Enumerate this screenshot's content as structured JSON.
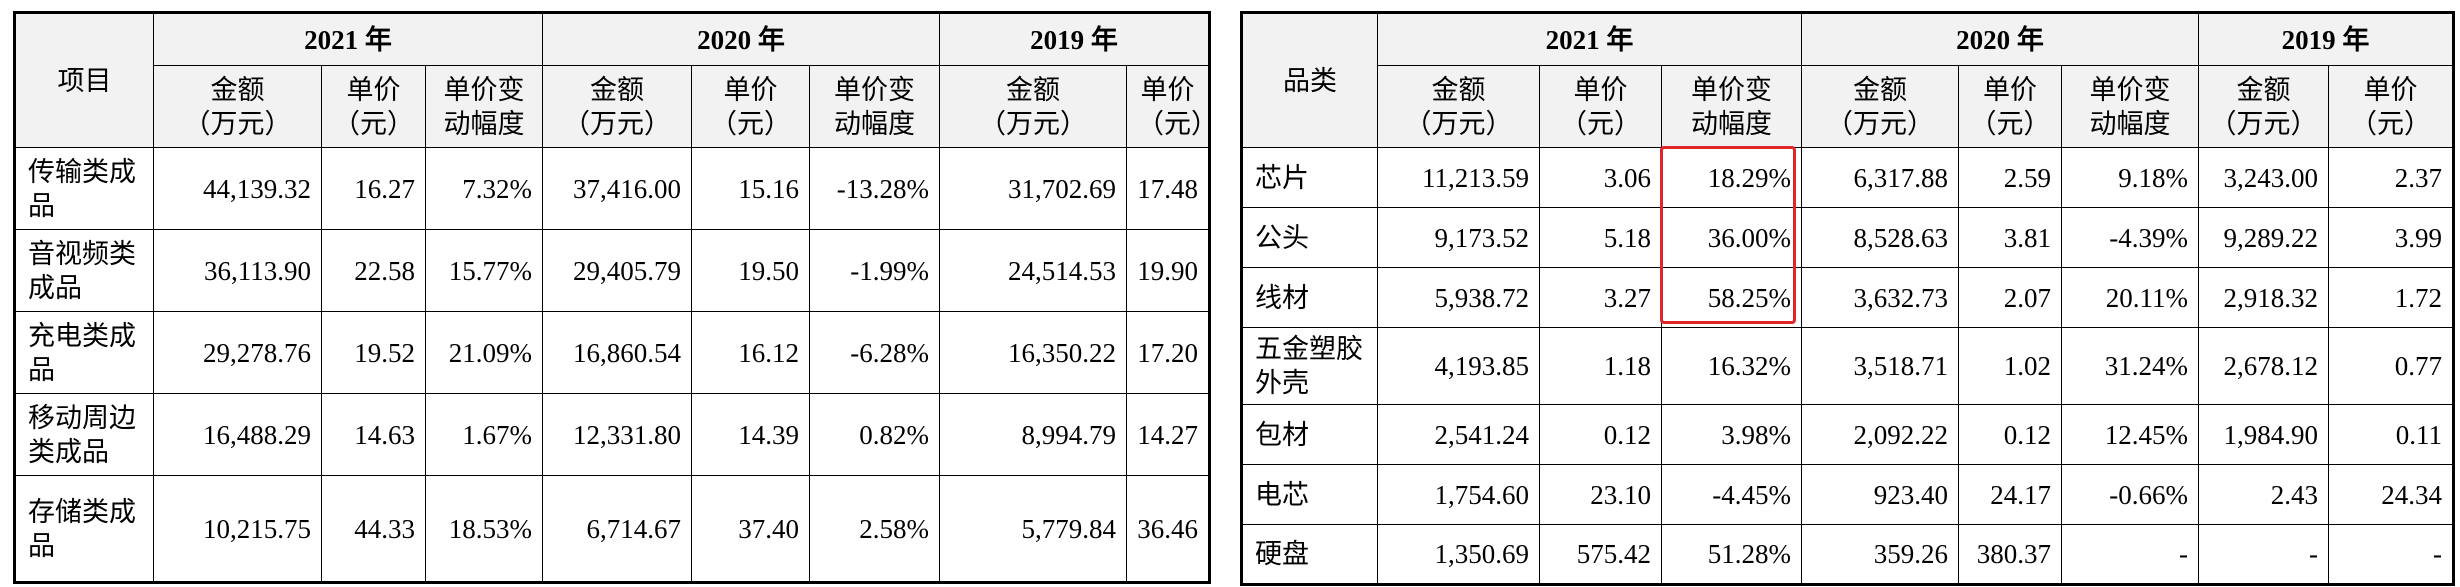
{
  "left_table": {
    "header": {
      "item": "项目",
      "years": [
        "2021 年",
        "2020 年",
        "2019 年"
      ],
      "columns": [
        "金额\n（万元）",
        "单价\n（元）",
        "单价变\n动幅度",
        "金额\n（万元）",
        "单价\n（元）",
        "单价变\n动幅度",
        "金额\n（万元）",
        "单价\n（元）"
      ]
    },
    "rows": [
      [
        "传输类成品",
        "44,139.32",
        "16.27",
        "7.32%",
        "37,416.00",
        "15.16",
        "-13.28%",
        "31,702.69",
        "17.48"
      ],
      [
        "音视频类成品",
        "36,113.90",
        "22.58",
        "15.77%",
        "29,405.79",
        "19.50",
        "-1.99%",
        "24,514.53",
        "19.90"
      ],
      [
        "充电类成品",
        "29,278.76",
        "19.52",
        "21.09%",
        "16,860.54",
        "16.12",
        "-6.28%",
        "16,350.22",
        "17.20"
      ],
      [
        "移动周边类成品",
        "16,488.29",
        "14.63",
        "1.67%",
        "12,331.80",
        "14.39",
        "0.82%",
        "8,994.79",
        "14.27"
      ],
      [
        "存储类成品",
        "10,215.75",
        "44.33",
        "18.53%",
        "6,714.67",
        "37.40",
        "2.58%",
        "5,779.84",
        "36.46"
      ]
    ]
  },
  "right_table": {
    "header": {
      "item": "品类",
      "years": [
        "2021 年",
        "2020 年",
        "2019 年"
      ],
      "columns": [
        "金额\n（万元）",
        "单价\n（元）",
        "单价变\n动幅度",
        "金额\n（万元）",
        "单价\n（元）",
        "单价变\n动幅度",
        "金额\n（万元）",
        "单价\n（元）"
      ]
    },
    "rows": [
      [
        "芯片",
        "11,213.59",
        "3.06",
        "18.29%",
        "6,317.88",
        "2.59",
        "9.18%",
        "3,243.00",
        "2.37"
      ],
      [
        "公头",
        "9,173.52",
        "5.18",
        "36.00%",
        "8,528.63",
        "3.81",
        "-4.39%",
        "9,289.22",
        "3.99"
      ],
      [
        "线材",
        "5,938.72",
        "3.27",
        "58.25%",
        "3,632.73",
        "2.07",
        "20.11%",
        "2,918.32",
        "1.72"
      ],
      [
        "五金塑胶外壳",
        "4,193.85",
        "1.18",
        "16.32%",
        "3,518.71",
        "1.02",
        "31.24%",
        "2,678.12",
        "0.77"
      ],
      [
        "包材",
        "2,541.24",
        "0.12",
        "3.98%",
        "2,092.22",
        "0.12",
        "12.45%",
        "1,984.90",
        "0.11"
      ],
      [
        "电芯",
        "1,754.60",
        "23.10",
        "-4.45%",
        "923.40",
        "24.17",
        "-0.66%",
        "2.43",
        "24.34"
      ],
      [
        "硬盘",
        "1,350.69",
        "575.42",
        "51.28%",
        "359.26",
        "380.37",
        "-",
        "-",
        "-"
      ]
    ]
  }
}
